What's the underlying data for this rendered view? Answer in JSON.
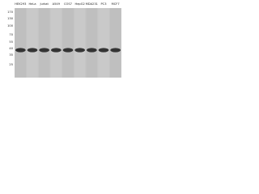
{
  "lanes": [
    "HEK293",
    "HeLa",
    "Jurkat",
    "A549",
    "COS7",
    "HepG2",
    "MDA231",
    "PC3",
    "MCF7"
  ],
  "markers": [
    "170",
    "130",
    "100",
    "70",
    "55",
    "40",
    "35",
    "25"
  ]
}
